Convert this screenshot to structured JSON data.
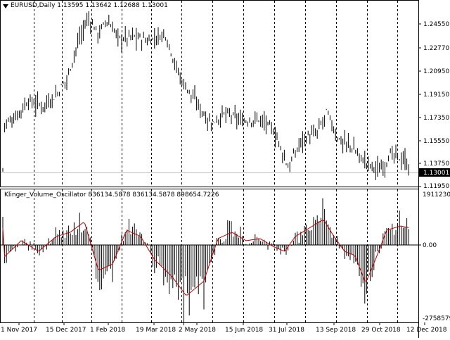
{
  "chart": {
    "symbol": "EURUSD",
    "timeframe": "Daily",
    "ohlc": {
      "open": "1.13595",
      "high": "1.13642",
      "low": "1.12688",
      "close": "1.13001"
    },
    "price_ticks": [
      "1.24550",
      "1.22770",
      "1.20950",
      "1.19150",
      "1.17350",
      "1.15550",
      "1.13750",
      "1.11950"
    ],
    "current_price": "1.13001",
    "time_labels": [
      "1 Nov 2017",
      "15 Dec 2017",
      "1 Feb 2018",
      "19 Mar 2018",
      "2 May 2018",
      "15 Jun 2018",
      "31 Jul 2018",
      "13 Sep 2018",
      "29 Oct 2018",
      "12 Dec 2018"
    ]
  },
  "oscillator": {
    "name": "Klinger_Volume_Oscillator",
    "values": [
      "836134.5878",
      "836134.5878",
      "898654.7226"
    ],
    "ticks": [
      "1911230.2",
      "0.00",
      "-2758579"
    ]
  },
  "colors": {
    "bars": "#000000",
    "signal": "#c00000",
    "grid": "#000000",
    "price_line": "#c0c0c0"
  },
  "chart_data": [
    {
      "type": "bar",
      "title": "",
      "x": [
        "1 Nov 2017",
        "15 Dec 2017",
        "1 Feb 2018",
        "19 Mar 2018",
        "2 May 2018",
        "15 Jun 2018",
        "31 Jul 2018",
        "13 Sep 2018",
        "29 Oct 2018",
        "12 Dec 2018"
      ],
      "close_approx": [
        1.167,
        1.178,
        1.245,
        1.233,
        1.195,
        1.163,
        1.17,
        1.168,
        1.142,
        1.13
      ],
      "ylim": [
        1.1195,
        1.2546
      ]
    },
    {
      "type": "bar",
      "title": "",
      "x": [
        "1 Nov 2017",
        "15 Dec 2017",
        "1 Feb 2018",
        "19 Mar 2018",
        "2 May 2018",
        "15 Jun 2018",
        "31 Jul 2018",
        "13 Sep 2018",
        "29 Oct 2018",
        "12 Dec 2018"
      ],
      "values_approx": [
        -600000,
        400000,
        1200000,
        500000,
        -2300000,
        -800000,
        -200000,
        1300000,
        -1900000,
        900000
      ],
      "ylim": [
        -2758579,
        1911230.2
      ]
    }
  ]
}
